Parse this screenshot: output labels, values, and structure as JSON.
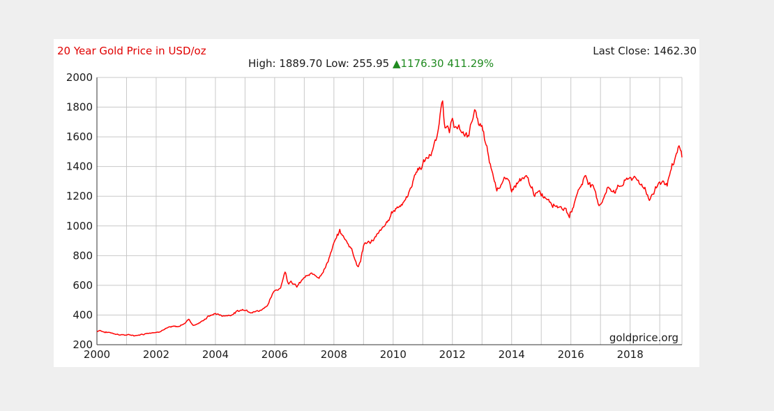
{
  "header": {
    "title": "20 Year Gold Price in USD/oz",
    "last_close_label": "Last Close:",
    "last_close_value": "1462.30",
    "high_label": "High:",
    "high_value": "1889.70",
    "low_label": "Low:",
    "low_value": "255.95",
    "change_value": "1176.30",
    "change_percent": "411.29%"
  },
  "watermark": "goldprice.org",
  "colors": {
    "series": "#ff0000",
    "title": "#e00000",
    "up": "#1f8a1f",
    "grid": "#c8c8c8"
  },
  "chart_data": {
    "type": "line",
    "title": "20 Year Gold Price in USD/oz",
    "xlabel": "",
    "ylabel": "",
    "xlim": [
      2000,
      2019.75
    ],
    "ylim": [
      200,
      2000
    ],
    "grid": true,
    "x_ticks": [
      "2000",
      "2002",
      "2004",
      "2006",
      "2008",
      "2010",
      "2012",
      "2014",
      "2016",
      "2018"
    ],
    "y_ticks": [
      "200",
      "400",
      "600",
      "800",
      "1000",
      "1200",
      "1400",
      "1600",
      "1800",
      "2000"
    ],
    "series": [
      {
        "name": "",
        "x": [
          2000.0,
          2000.1,
          2000.25,
          2000.5,
          2000.75,
          2001.0,
          2001.25,
          2001.5,
          2001.75,
          2002.0,
          2002.25,
          2002.5,
          2002.75,
          2003.0,
          2003.1,
          2003.25,
          2003.5,
          2003.75,
          2004.0,
          2004.25,
          2004.5,
          2004.75,
          2005.0,
          2005.25,
          2005.5,
          2005.75,
          2006.0,
          2006.2,
          2006.35,
          2006.45,
          2006.55,
          2006.75,
          2007.0,
          2007.25,
          2007.5,
          2007.75,
          2008.0,
          2008.2,
          2008.4,
          2008.6,
          2008.8,
          2008.9,
          2009.0,
          2009.25,
          2009.5,
          2009.75,
          2010.0,
          2010.25,
          2010.5,
          2010.75,
          2011.0,
          2011.25,
          2011.5,
          2011.67,
          2011.75,
          2011.9,
          2012.0,
          2012.25,
          2012.5,
          2012.75,
          2012.85,
          2013.0,
          2013.25,
          2013.5,
          2013.75,
          2014.0,
          2014.25,
          2014.5,
          2014.75,
          2015.0,
          2015.25,
          2015.5,
          2015.75,
          2015.95,
          2016.25,
          2016.5,
          2016.75,
          2016.95,
          2017.25,
          2017.5,
          2017.75,
          2018.0,
          2018.25,
          2018.5,
          2018.65,
          2018.8,
          2019.0,
          2019.25,
          2019.5,
          2019.65,
          2019.75
        ],
        "values": [
          290,
          300,
          285,
          280,
          270,
          265,
          262,
          270,
          282,
          285,
          305,
          318,
          320,
          352,
          375,
          332,
          350,
          390,
          410,
          395,
          400,
          425,
          440,
          425,
          430,
          470,
          560,
          590,
          700,
          620,
          640,
          590,
          650,
          670,
          660,
          740,
          880,
          960,
          900,
          850,
          730,
          760,
          870,
          900,
          940,
          1000,
          1100,
          1150,
          1200,
          1360,
          1420,
          1480,
          1600,
          1880,
          1680,
          1620,
          1700,
          1640,
          1600,
          1780,
          1700,
          1650,
          1420,
          1250,
          1330,
          1240,
          1300,
          1310,
          1220,
          1210,
          1190,
          1150,
          1130,
          1060,
          1240,
          1340,
          1260,
          1140,
          1250,
          1250,
          1280,
          1330,
          1300,
          1260,
          1190,
          1230,
          1300,
          1290,
          1420,
          1520,
          1462
        ]
      }
    ]
  }
}
